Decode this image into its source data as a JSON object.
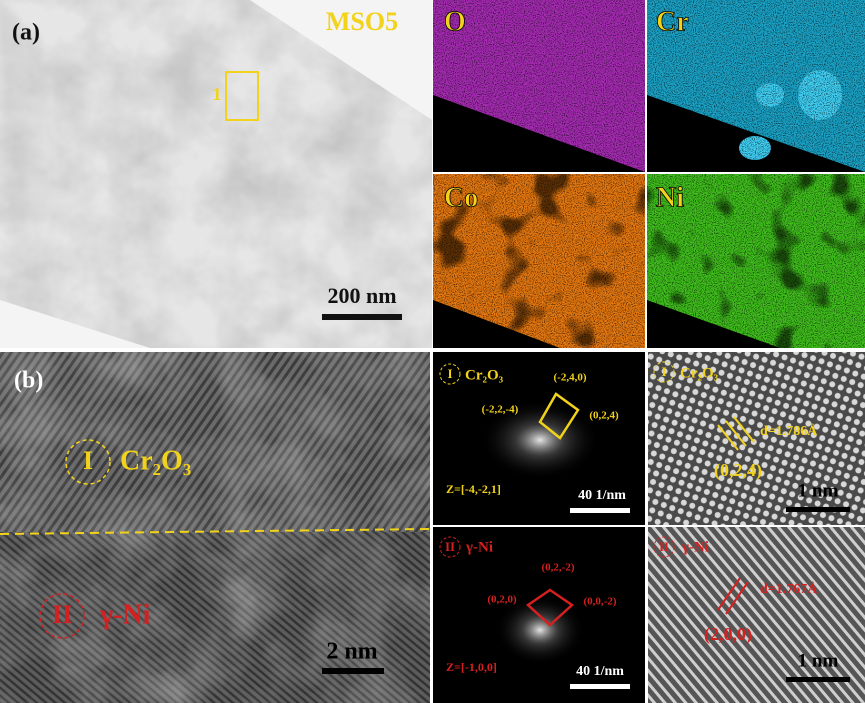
{
  "panel_a": {
    "label": "(a)",
    "sample": "MSO5",
    "region": "1",
    "scale_bar": "200 nm"
  },
  "eds_maps": [
    {
      "element": "O"
    },
    {
      "element": "Cr"
    },
    {
      "element": "Co"
    },
    {
      "element": "Ni"
    }
  ],
  "panel_b": {
    "label": "(b)",
    "region_1": {
      "numeral": "I",
      "phase": "Cr₂O₃"
    },
    "region_2": {
      "numeral": "II",
      "phase": "γ-Ni"
    },
    "scale_bar": "2 nm"
  },
  "fft_1": {
    "numeral": "I",
    "phase": "Cr₂O₃",
    "spots": [
      "(-2,4,0)",
      "(-2,2,-4)",
      "(0,2,4)"
    ],
    "zone_axis": "Z=[-4,-2,1]",
    "scale_bar": "40 1/nm"
  },
  "hrtem_1": {
    "numeral": "I",
    "phase": "Cr₂O₃",
    "d_spacing": "d=1.786Å",
    "plane": "(0,2,4)",
    "scale_bar": "1 nm"
  },
  "fft_2": {
    "numeral": "II",
    "phase": "γ-Ni",
    "spots": [
      "(0,2,-2)",
      "(0,2,0)",
      "(0,0,-2)"
    ],
    "zone_axis": "Z=[-1,0,0]",
    "scale_bar": "40 1/nm"
  },
  "hrtem_2": {
    "numeral": "II",
    "phase": "γ-Ni",
    "d_spacing": "d=1.767Å",
    "plane": "(2,0,0)",
    "scale_bar": "1 nm"
  }
}
